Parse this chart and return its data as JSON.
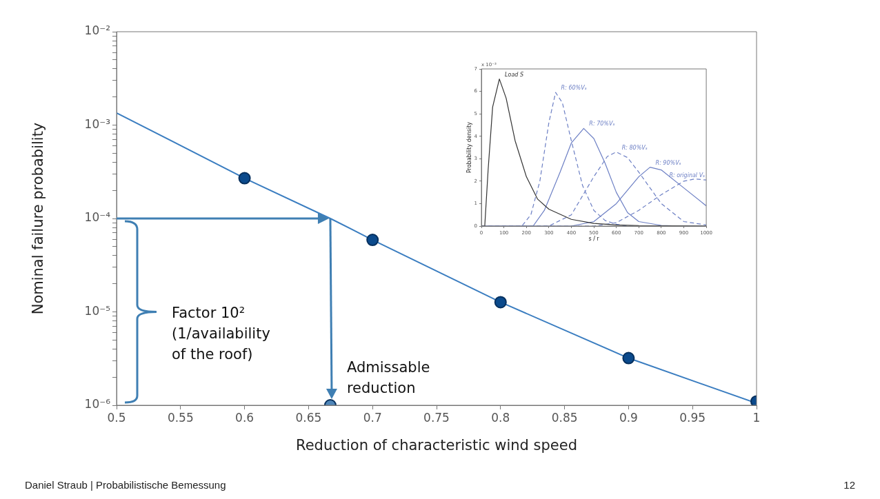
{
  "chart_data": [
    {
      "type": "line",
      "xlabel": "Reduction of characteristic wind speed",
      "ylabel": "Nominal failure probability",
      "log": "y",
      "grid": false,
      "legend": false,
      "xlim": [
        0.5,
        1
      ],
      "xticks": [
        0.5,
        0.55,
        0.6,
        0.65,
        0.7,
        0.75,
        0.8,
        0.85,
        0.9,
        0.95,
        1
      ],
      "ylim": [
        1e-06,
        0.01
      ],
      "yticks": [
        {
          "value": 1e-06,
          "label": "10⁻⁶"
        },
        {
          "value": 2e-06,
          "label": null
        },
        {
          "value": 3e-06,
          "label": null
        },
        {
          "value": 4e-06,
          "label": null
        },
        {
          "value": 5e-06,
          "label": null
        },
        {
          "value": 6e-06,
          "label": null
        },
        {
          "value": 7e-06,
          "label": null
        },
        {
          "value": 8e-06,
          "label": null
        },
        {
          "value": 9e-06,
          "label": null
        },
        {
          "value": 1e-05,
          "label": "10⁻⁵"
        },
        {
          "value": 2e-05,
          "label": null
        },
        {
          "value": 3e-05,
          "label": null
        },
        {
          "value": 4e-05,
          "label": null
        },
        {
          "value": 5e-05,
          "label": null
        },
        {
          "value": 6e-05,
          "label": null
        },
        {
          "value": 7e-05,
          "label": null
        },
        {
          "value": 8e-05,
          "label": null
        },
        {
          "value": 9e-05,
          "label": null
        },
        {
          "value": 0.0001,
          "label": "10⁻⁴"
        },
        {
          "value": 0.0002,
          "label": null
        },
        {
          "value": 0.0003,
          "label": null
        },
        {
          "value": 0.0004,
          "label": null
        },
        {
          "value": 0.0005,
          "label": null
        },
        {
          "value": 0.0006,
          "label": null
        },
        {
          "value": 0.0007,
          "label": null
        },
        {
          "value": 0.0008,
          "label": null
        },
        {
          "value": 0.0009,
          "label": null
        },
        {
          "value": 0.001,
          "label": "10⁻³"
        },
        {
          "value": 0.002,
          "label": null
        },
        {
          "value": 0.003,
          "label": null
        },
        {
          "value": 0.004,
          "label": null
        },
        {
          "value": 0.005,
          "label": null
        },
        {
          "value": 0.006,
          "label": null
        },
        {
          "value": 0.007,
          "label": null
        },
        {
          "value": 0.008,
          "label": null
        },
        {
          "value": 0.009,
          "label": null
        },
        {
          "value": 0.01,
          "label": "10⁻²"
        }
      ],
      "series": [
        {
          "color": "#3a7dc0",
          "marker": "none",
          "x": [
            0.5,
            0.6,
            0.667,
            0.7,
            0.8,
            0.9,
            1
          ],
          "values": [
            0.00135,
            0.00027,
            0.0001,
            5.9e-05,
            1.27e-05,
            3.2e-06,
            1.05e-06
          ]
        },
        {
          "type": "scatter",
          "color": "#0b4a8c",
          "marker": "circle",
          "x": [
            0.6,
            0.7,
            0.8,
            0.9,
            1
          ],
          "values": [
            0.00027,
            5.9e-05,
            1.27e-05,
            3.2e-06,
            1.1e-06
          ]
        },
        {
          "type": "scatter",
          "color": "#4f86b8",
          "marker": "circle",
          "x": [
            0.667
          ],
          "values": [
            1e-06
          ]
        }
      ],
      "annotations": [
        "Factor 10²\n(1/availability\nof the roof)",
        {
          "text": "Admissable\nreduction",
          "x": 0.667,
          "y": 1e-06
        },
        "Daniel Straub | Probabilistische Bemessung",
        "12"
      ]
    },
    {
      "type": "line",
      "xlabel": "s / r",
      "ylabel": "Probability density",
      "grid": false,
      "legend": false,
      "xlim": [
        0,
        1000
      ],
      "xticks": [
        0,
        100,
        200,
        300,
        400,
        500,
        600,
        700,
        800,
        900,
        1000
      ],
      "ylim": [
        0,
        7
      ],
      "yticks": [
        0,
        1,
        2,
        3,
        4,
        5,
        6,
        7
      ],
      "annotations": [
        "x 10⁻³"
      ],
      "series": [
        {
          "name": "Load S",
          "color": "#333333",
          "line_style": "solid",
          "x": [
            0,
            15,
            30,
            50,
            80,
            110,
            150,
            200,
            250,
            300,
            400,
            500,
            600,
            700,
            1000
          ],
          "values": [
            0,
            0,
            2.5,
            5.3,
            6.55,
            5.7,
            3.8,
            2.2,
            1.2,
            0.75,
            0.3,
            0.12,
            0.05,
            0.02,
            0
          ]
        },
        {
          "name": "R: 60%Vₛ",
          "color": "#6c7fc4",
          "line_style": "dashed",
          "x": [
            0,
            180,
            220,
            260,
            300,
            330,
            360,
            400,
            450,
            500,
            550,
            600,
            650,
            1000
          ],
          "values": [
            0,
            0,
            0.5,
            2,
            4.6,
            5.95,
            5.5,
            3.8,
            1.8,
            0.7,
            0.25,
            0.08,
            0,
            0
          ]
        },
        {
          "name": "R: 70%Vₛ",
          "color": "#6c7fc4",
          "line_style": "solid",
          "x": [
            0,
            230,
            280,
            350,
            400,
            455,
            500,
            550,
            600,
            650,
            700,
            800,
            900,
            1000
          ],
          "values": [
            0,
            0,
            0.7,
            2.4,
            3.7,
            4.35,
            3.9,
            2.8,
            1.5,
            0.6,
            0.2,
            0.03,
            0,
            0
          ]
        },
        {
          "name": "R: 80%Vₛ",
          "color": "#6c7fc4",
          "line_style": "dashed",
          "x": [
            0,
            300,
            400,
            500,
            560,
            600,
            650,
            700,
            800,
            900,
            1000
          ],
          "values": [
            0,
            0,
            0.5,
            2.2,
            3.1,
            3.3,
            3.05,
            2.4,
            1,
            0.2,
            0.05
          ]
        },
        {
          "name": "R: 90%Vₛ",
          "color": "#6c7fc4",
          "line_style": "solid",
          "x": [
            0,
            400,
            500,
            600,
            700,
            750,
            800,
            900,
            1000
          ],
          "values": [
            0,
            0,
            0.2,
            1,
            2.2,
            2.62,
            2.5,
            1.7,
            0.9
          ]
        },
        {
          "name": "R: original Vₛ",
          "color": "#6c7fc4",
          "line_style": "dashed",
          "x": [
            0,
            500,
            600,
            700,
            800,
            900,
            950,
            1000
          ],
          "values": [
            0,
            0,
            0.15,
            0.7,
            1.4,
            2,
            2.1,
            2.05
          ]
        }
      ]
    }
  ]
}
